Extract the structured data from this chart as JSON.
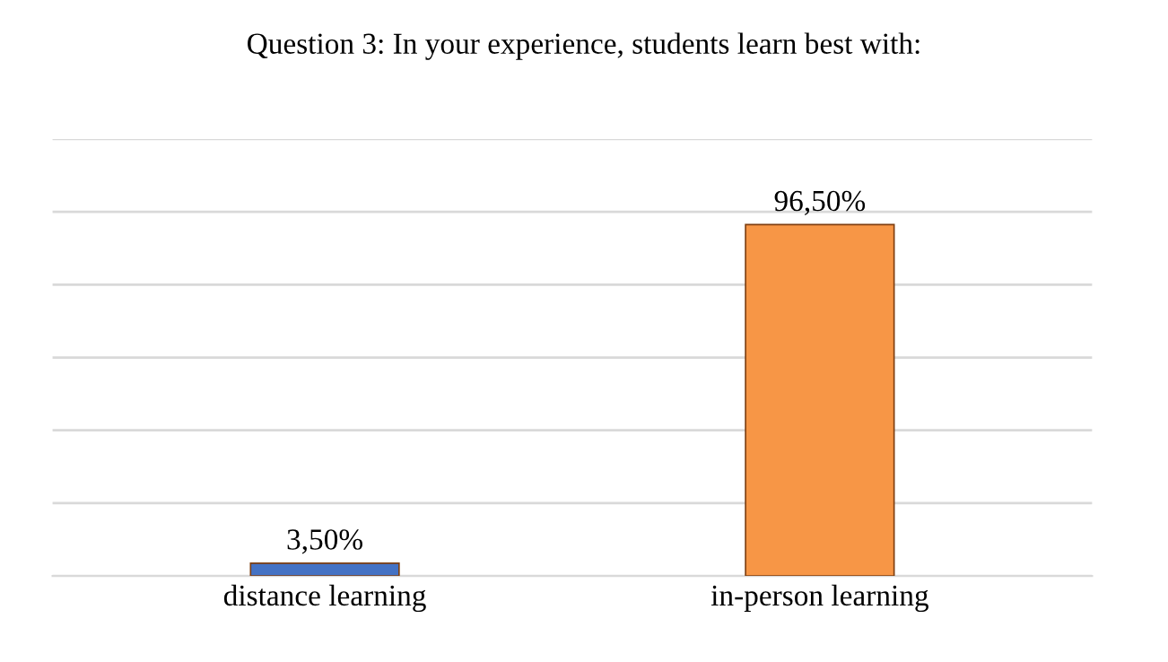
{
  "chart_data": {
    "type": "bar",
    "title": "Question 3: In your experience, students learn best with:",
    "categories": [
      "distance learning",
      "in-person learning"
    ],
    "values": [
      3.5,
      96.5
    ],
    "colors": [
      "#4472c4",
      "#f79646"
    ],
    "value_labels": [
      "3,50%",
      "96,50%"
    ],
    "ylim": [
      0,
      120
    ],
    "yticks": [
      {
        "value": 0,
        "label": null
      },
      {
        "value": 20,
        "label": null
      },
      {
        "value": 40,
        "label": null
      },
      {
        "value": 60,
        "label": null
      },
      {
        "value": 80,
        "label": null
      },
      {
        "value": 100,
        "label": null
      },
      {
        "value": 120,
        "label": null
      }
    ],
    "grid": "y",
    "tick_labels": "x"
  }
}
